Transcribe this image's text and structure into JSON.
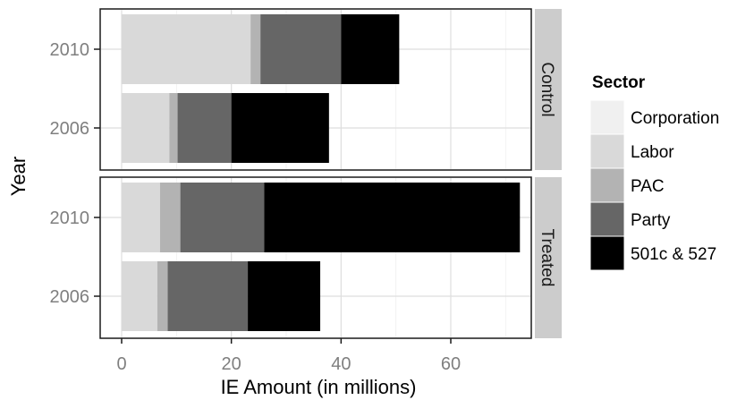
{
  "chart_data": {
    "type": "bar",
    "orientation": "horizontal",
    "stacked": true,
    "xlabel": "IE Amount (in millions)",
    "ylabel": "Year",
    "xlim": [
      0,
      75
    ],
    "x_ticks": [
      0,
      20,
      40,
      60
    ],
    "grid": true,
    "legend": {
      "title": "Sector",
      "position": "right",
      "entries": [
        "Corporation",
        "Labor",
        "PAC",
        "Party",
        "501c & 527"
      ]
    },
    "colors": {
      "Corporation": "#f0f0f0",
      "Labor": "#d9d9d9",
      "PAC": "#b3b3b3",
      "Party": "#666666",
      "501c & 527": "#000000"
    },
    "panels": [
      {
        "label": "Control",
        "categories": [
          "2010",
          "2006"
        ],
        "series": [
          {
            "name": "Corporation",
            "values": [
              0,
              0
            ]
          },
          {
            "name": "Labor",
            "values": [
              23.5,
              8.7
            ]
          },
          {
            "name": "PAC",
            "values": [
              1.8,
              1.5
            ]
          },
          {
            "name": "Party",
            "values": [
              14.7,
              9.8
            ]
          },
          {
            "name": "501c & 527",
            "values": [
              10.6,
              17.8
            ]
          }
        ]
      },
      {
        "label": "Treated",
        "categories": [
          "2010",
          "2006"
        ],
        "series": [
          {
            "name": "Corporation",
            "values": [
              0,
              0
            ]
          },
          {
            "name": "Labor",
            "values": [
              7.0,
              6.5
            ]
          },
          {
            "name": "PAC",
            "values": [
              3.7,
              1.9
            ]
          },
          {
            "name": "Party",
            "values": [
              15.3,
              14.6
            ]
          },
          {
            "name": "501c & 527",
            "values": [
              46.6,
              13.2
            ]
          }
        ]
      }
    ]
  }
}
